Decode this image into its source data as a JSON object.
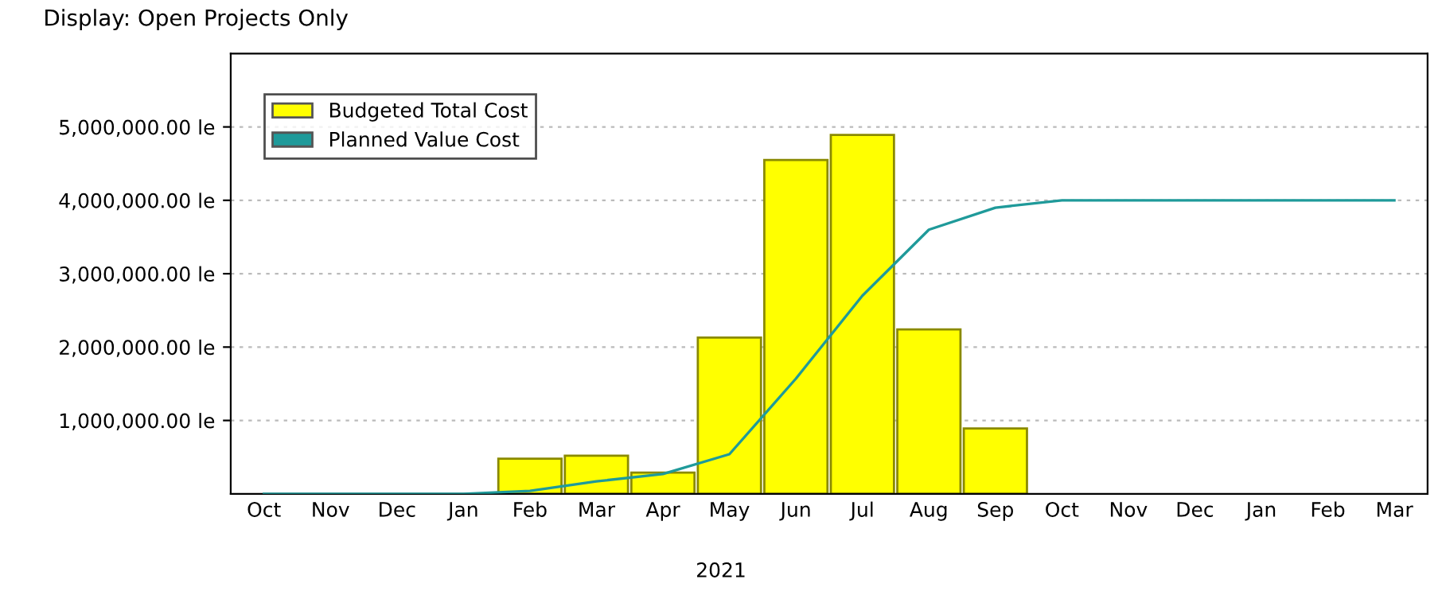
{
  "chart_data": {
    "type": "bar",
    "title": "Display: Open Projects Only",
    "categories": [
      "Oct",
      "Nov",
      "Dec",
      "Jan",
      "Feb",
      "Mar",
      "Apr",
      "May",
      "Jun",
      "Jul",
      "Aug",
      "Sep",
      "Oct",
      "Nov",
      "Dec",
      "Jan",
      "Feb",
      "Mar"
    ],
    "series": [
      {
        "name": "Budgeted Total Cost",
        "color": "#ffff00",
        "values": [
          null,
          null,
          null,
          null,
          480000,
          520000,
          290000,
          2130000,
          4550000,
          4890000,
          2240000,
          890000,
          null,
          null,
          null,
          null,
          null,
          null
        ]
      },
      {
        "name": "Planned Value Cost",
        "type": "line",
        "color": "#1f9a9a",
        "values": [
          0,
          0,
          0,
          0,
          40000,
          170000,
          270000,
          540000,
          1570000,
          2700000,
          3600000,
          3900000,
          4000000,
          4000000,
          4000000,
          4000000,
          4000000,
          4000000
        ]
      }
    ],
    "ylim": [
      0,
      6000000
    ],
    "yticks": [
      {
        "value": 1000000,
        "label": "1,000,000.00 le"
      },
      {
        "value": 2000000,
        "label": "2,000,000.00 le"
      },
      {
        "value": 3000000,
        "label": "3,000,000.00 le"
      },
      {
        "value": 4000000,
        "label": "4,000,000.00 le"
      },
      {
        "value": 5000000,
        "label": "5,000,000.00 le"
      }
    ],
    "annotations": [
      "2021"
    ],
    "grid": "y",
    "legend": "top left",
    "marker": "none"
  }
}
